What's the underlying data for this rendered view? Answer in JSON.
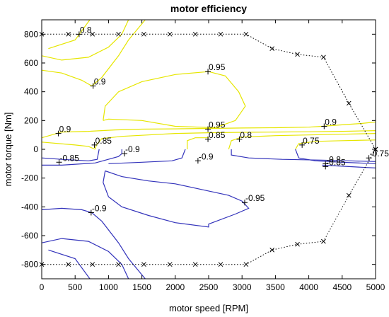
{
  "chart_data": {
    "type": "contour",
    "title": "motor efficiency",
    "xlabel": "motor speed [RPM]",
    "ylabel": "motor torque [Nm]",
    "xlim": [
      0,
      5000
    ],
    "ylim": [
      -900,
      900
    ],
    "xticks": [
      0,
      500,
      1000,
      1500,
      2000,
      2500,
      3000,
      3500,
      4000,
      4500,
      5000
    ],
    "yticks": [
      -800,
      -600,
      -400,
      -200,
      0,
      200,
      400,
      600,
      800
    ],
    "grid": false,
    "colors": {
      "motoring": "#e6e600",
      "generating": "#3333bb",
      "envelope": "#000000",
      "markers": "#000000"
    },
    "envelope_max": [
      {
        "x": 0,
        "y": 800
      },
      {
        "x": 400,
        "y": 800
      },
      {
        "x": 760,
        "y": 800
      },
      {
        "x": 1150,
        "y": 800
      },
      {
        "x": 1530,
        "y": 800
      },
      {
        "x": 1920,
        "y": 800
      },
      {
        "x": 2300,
        "y": 800
      },
      {
        "x": 2680,
        "y": 800
      },
      {
        "x": 3060,
        "y": 800
      },
      {
        "x": 3450,
        "y": 700
      },
      {
        "x": 3830,
        "y": 660
      },
      {
        "x": 4220,
        "y": 640
      },
      {
        "x": 4600,
        "y": 320
      },
      {
        "x": 5000,
        "y": 0
      }
    ],
    "envelope_min": [
      {
        "x": 0,
        "y": -800
      },
      {
        "x": 400,
        "y": -800
      },
      {
        "x": 760,
        "y": -800
      },
      {
        "x": 1150,
        "y": -800
      },
      {
        "x": 1530,
        "y": -800
      },
      {
        "x": 1920,
        "y": -800
      },
      {
        "x": 2300,
        "y": -800
      },
      {
        "x": 2680,
        "y": -800
      },
      {
        "x": 3060,
        "y": -800
      },
      {
        "x": 3450,
        "y": -700
      },
      {
        "x": 3830,
        "y": -660
      },
      {
        "x": 4220,
        "y": -640
      },
      {
        "x": 4600,
        "y": -320
      },
      {
        "x": 5000,
        "y": 0
      }
    ],
    "contours": [
      {
        "level": 0.8,
        "color": "yellow",
        "points": [
          [
            100,
            700
          ],
          [
            500,
            760
          ],
          [
            720,
            900
          ]
        ]
      },
      {
        "level": 0.8,
        "color": "yellow",
        "points": [
          [
            0,
            650
          ],
          [
            300,
            620
          ],
          [
            700,
            640
          ],
          [
            1000,
            710
          ],
          [
            1200,
            800
          ],
          [
            1300,
            900
          ]
        ]
      },
      {
        "level": 0.9,
        "color": "yellow",
        "points": [
          [
            0,
            550
          ],
          [
            300,
            530
          ],
          [
            600,
            480
          ],
          [
            750,
            440
          ],
          [
            900,
            500
          ],
          [
            1150,
            650
          ],
          [
            1300,
            760
          ],
          [
            1550,
            900
          ]
        ]
      },
      {
        "level": 0.95,
        "color": "yellow",
        "points": [
          [
            920,
            200
          ],
          [
            950,
            300
          ],
          [
            1150,
            400
          ],
          [
            1500,
            470
          ],
          [
            2000,
            520
          ],
          [
            2500,
            540
          ],
          [
            2750,
            510
          ],
          [
            2950,
            400
          ],
          [
            3050,
            300
          ],
          [
            2900,
            200
          ],
          [
            2600,
            150
          ],
          [
            2000,
            160
          ],
          [
            1500,
            200
          ],
          [
            1000,
            210
          ],
          [
            920,
            200
          ]
        ]
      },
      {
        "level": 0.9,
        "color": "yellow",
        "points": [
          [
            0,
            80
          ],
          [
            300,
            120
          ],
          [
            700,
            125
          ],
          [
            1100,
            135
          ],
          [
            1500,
            140
          ],
          [
            2000,
            142
          ],
          [
            2500,
            145
          ],
          [
            3000,
            148
          ],
          [
            3500,
            150
          ],
          [
            4000,
            154
          ],
          [
            4200,
            160
          ],
          [
            4500,
            170
          ],
          [
            4800,
            180
          ],
          [
            5000,
            190
          ]
        ]
      },
      {
        "level": 0.9,
        "color": "yellow",
        "points": [
          [
            0,
            50
          ],
          [
            500,
            30
          ],
          [
            700,
            20
          ],
          [
            800,
            0
          ]
        ]
      },
      {
        "level": 0.85,
        "color": "yellow",
        "points": [
          [
            800,
            0
          ],
          [
            820,
            30
          ],
          [
            900,
            75
          ],
          [
            1200,
            90
          ],
          [
            1600,
            100
          ],
          [
            2000,
            110
          ],
          [
            2500,
            115
          ],
          [
            3000,
            118
          ],
          [
            3500,
            120
          ],
          [
            4000,
            122
          ],
          [
            4500,
            125
          ],
          [
            5000,
            130
          ]
        ]
      },
      {
        "level": 0.85,
        "color": "yellow",
        "points": [
          [
            2180,
            0
          ],
          [
            2180,
            60
          ],
          [
            2300,
            80
          ],
          [
            2500,
            80
          ]
        ]
      },
      {
        "level": 0.8,
        "color": "yellow",
        "points": [
          [
            2800,
            0
          ],
          [
            2840,
            60
          ],
          [
            3000,
            85
          ],
          [
            3500,
            95
          ],
          [
            4000,
            100
          ],
          [
            4500,
            105
          ],
          [
            5000,
            110
          ]
        ]
      },
      {
        "level": 0.75,
        "color": "yellow",
        "points": [
          [
            3800,
            0
          ],
          [
            3850,
            40
          ],
          [
            4100,
            55
          ],
          [
            4500,
            60
          ],
          [
            5000,
            65
          ]
        ]
      },
      {
        "level": -0.85,
        "color": "blue",
        "points": [
          [
            0,
            -60
          ],
          [
            300,
            -70
          ],
          [
            700,
            -80
          ],
          [
            830,
            -70
          ],
          [
            860,
            0
          ]
        ]
      },
      {
        "level": -0.9,
        "color": "blue",
        "points": [
          [
            1200,
            0
          ],
          [
            1200,
            -30
          ],
          [
            1150,
            -50
          ],
          [
            800,
            -95
          ],
          [
            300,
            -110
          ],
          [
            0,
            -110
          ]
        ]
      },
      {
        "level": -0.9,
        "color": "blue",
        "points": [
          [
            2150,
            0
          ],
          [
            2100,
            -60
          ],
          [
            1950,
            -80
          ],
          [
            1500,
            -90
          ],
          [
            1000,
            -100
          ]
        ]
      },
      {
        "level": -0.8,
        "color": "blue",
        "points": [
          [
            2840,
            0
          ],
          [
            2840,
            -40
          ],
          [
            3100,
            -60
          ],
          [
            3600,
            -70
          ],
          [
            4200,
            -75
          ],
          [
            4600,
            -80
          ],
          [
            5000,
            -85
          ]
        ]
      },
      {
        "level": -0.85,
        "color": "blue",
        "points": [
          [
            3800,
            0
          ],
          [
            3850,
            -60
          ],
          [
            4100,
            -80
          ],
          [
            4500,
            -90
          ],
          [
            5000,
            -100
          ]
        ]
      },
      {
        "level": -0.9,
        "color": "blue",
        "points": [
          [
            4200,
            -110
          ],
          [
            4600,
            -120
          ],
          [
            5000,
            -130
          ]
        ]
      },
      {
        "level": -0.95,
        "color": "blue",
        "points": [
          [
            950,
            -150
          ],
          [
            1200,
            -190
          ],
          [
            1600,
            -220
          ],
          [
            2000,
            -240
          ],
          [
            2400,
            -280
          ],
          [
            2800,
            -320
          ],
          [
            3000,
            -360
          ],
          [
            3100,
            -410
          ],
          [
            2900,
            -450
          ],
          [
            2500,
            -520
          ],
          [
            2500,
            -540
          ],
          [
            2000,
            -510
          ],
          [
            1600,
            -460
          ],
          [
            1200,
            -400
          ],
          [
            1000,
            -330
          ],
          [
            920,
            -230
          ],
          [
            950,
            -150
          ]
        ]
      },
      {
        "level": -0.9,
        "color": "blue",
        "points": [
          [
            0,
            -420
          ],
          [
            300,
            -410
          ],
          [
            600,
            -420
          ],
          [
            750,
            -440
          ],
          [
            900,
            -500
          ],
          [
            1150,
            -650
          ],
          [
            1300,
            -760
          ],
          [
            1550,
            -900
          ]
        ]
      },
      {
        "level": -0.85,
        "color": "blue",
        "points": [
          [
            0,
            -650
          ],
          [
            300,
            -620
          ],
          [
            700,
            -640
          ],
          [
            1000,
            -710
          ],
          [
            1200,
            -800
          ],
          [
            1300,
            -900
          ]
        ]
      },
      {
        "level": -0.8,
        "color": "blue",
        "points": [
          [
            100,
            -700
          ],
          [
            500,
            -760
          ],
          [
            720,
            -900
          ]
        ]
      }
    ],
    "annotations": [
      {
        "text": "0.8",
        "x": 560,
        "y": 800
      },
      {
        "text": "0.9",
        "x": 770,
        "y": 440
      },
      {
        "text": "0.95",
        "x": 2490,
        "y": 540
      },
      {
        "text": "0.9",
        "x": 250,
        "y": 110
      },
      {
        "text": "0.85",
        "x": 790,
        "y": 30
      },
      {
        "text": "0.95",
        "x": 2490,
        "y": 140
      },
      {
        "text": "0.85",
        "x": 2490,
        "y": 70
      },
      {
        "text": "0.8",
        "x": 2960,
        "y": 70
      },
      {
        "text": "0.9",
        "x": 4230,
        "y": 160
      },
      {
        "text": "0.75",
        "x": 3900,
        "y": 30
      },
      {
        "text": "-0.85",
        "x": 260,
        "y": -90
      },
      {
        "text": "-0.9",
        "x": 1240,
        "y": -30
      },
      {
        "text": "-0.9",
        "x": 2340,
        "y": -80
      },
      {
        "text": "-0.8",
        "x": 4250,
        "y": -100
      },
      {
        "text": "-0.85",
        "x": 4250,
        "y": -120
      },
      {
        "text": "-0.75",
        "x": 4900,
        "y": -60
      },
      {
        "text": "-0.95",
        "x": 3040,
        "y": -370
      },
      {
        "text": "-0.9",
        "x": 740,
        "y": -440
      }
    ]
  }
}
